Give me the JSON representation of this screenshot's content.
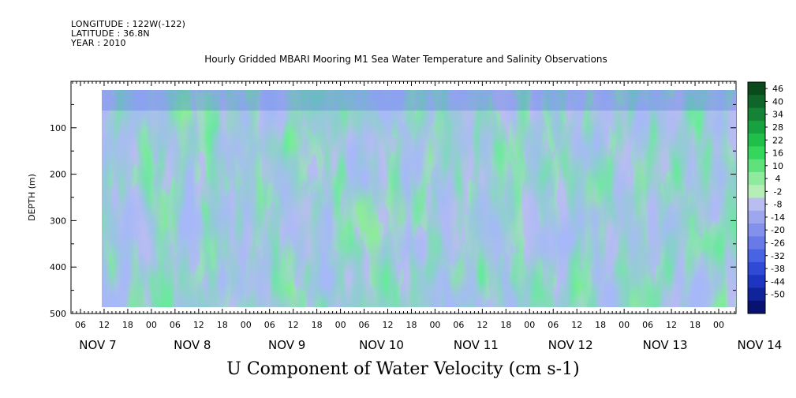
{
  "header": {
    "longitude": "LONGITUDE : 122W(-122)",
    "latitude": "LATITUDE : 36.8N",
    "year": "YEAR : 2010"
  },
  "chart_data": {
    "type": "heatmap",
    "title": "Hourly Gridded MBARI Mooring M1 Sea Water Temperature and Salinity Observations",
    "xlabel": "U Component of Water Velocity (cm s-1)",
    "ylabel": "DEPTH (m)",
    "ylim": [
      500,
      0
    ],
    "y_ticks": [
      "100",
      "200",
      "300",
      "400",
      "500"
    ],
    "x_hour_ticks": [
      "06",
      "12",
      "18",
      "00",
      "06",
      "12",
      "18",
      "00",
      "06",
      "12",
      "18",
      "00",
      "06",
      "12",
      "18",
      "00",
      "06",
      "12",
      "18",
      "00",
      "06",
      "12",
      "18",
      "00",
      "06",
      "12",
      "18",
      "00"
    ],
    "x_date_labels": [
      "NOV  7",
      "NOV  8",
      "NOV  9",
      "NOV 10",
      "NOV 11",
      "NOV 12",
      "NOV 13",
      "NOV 14"
    ],
    "colorbar_levels": [
      "46",
      "40",
      "34",
      "28",
      "22",
      "16",
      "10",
      "4",
      "-2",
      "-8",
      "-14",
      "-20",
      "-26",
      "-32",
      "-38",
      "-44",
      "-50"
    ],
    "colorbar_colors": [
      "#0b4a1c",
      "#10652a",
      "#148335",
      "#18a23f",
      "#1fbf4a",
      "#34d65c",
      "#5fe27b",
      "#8eea9c",
      "#b6eeb8",
      "#b9bdf0",
      "#9ea6ee",
      "#8390ec",
      "#677ae8",
      "#4a63e2",
      "#2f4bd6",
      "#1d35bf",
      "#10239a",
      "#081270"
    ]
  }
}
